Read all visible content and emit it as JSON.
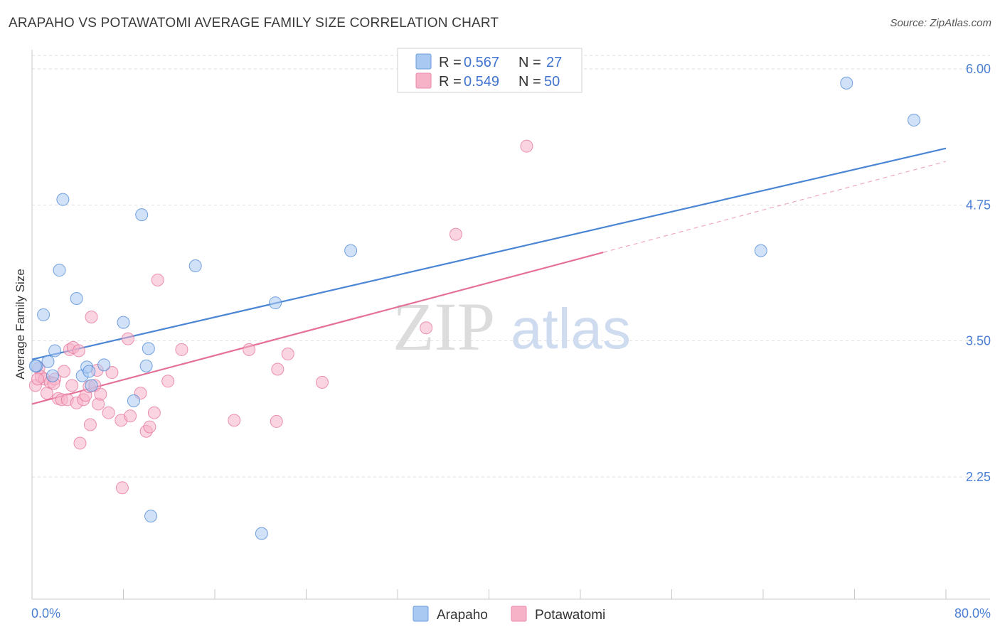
{
  "title": "ARAPAHO VS POTAWATOMI AVERAGE FAMILY SIZE CORRELATION CHART",
  "source": "Source: ZipAtlas.com",
  "watermark": {
    "zip": "ZIP",
    "atlas": "atlas"
  },
  "legend_top": {
    "rows": [
      {
        "r_label": "R =",
        "r_value": "0.567",
        "n_label": "N =",
        "n_value": "27",
        "color": "#a9c8f2"
      },
      {
        "r_label": "R =",
        "r_value": "0.549",
        "n_label": "N =",
        "n_value": "50",
        "color": "#f6b3c8"
      }
    ]
  },
  "legend_bottom": [
    {
      "name": "Arapaho",
      "color": "#a9c8f2"
    },
    {
      "name": "Potawatomi",
      "color": "#f6b3c8"
    }
  ],
  "chart_data": {
    "type": "scatter",
    "title": "ARAPAHO VS POTAWATOMI AVERAGE FAMILY SIZE CORRELATION CHART",
    "xlabel": "",
    "ylabel": "Average Family Size",
    "xlim": [
      0,
      80
    ],
    "ylim": [
      1.25,
      6.35
    ],
    "x_tick_labels": [
      "0.0%",
      "80.0%"
    ],
    "y_ticks": [
      2.25,
      3.5,
      4.75,
      6.0
    ],
    "y_tick_labels": [
      "2.25",
      "3.50",
      "4.75",
      "6.00"
    ],
    "grid": "horizontal dashed",
    "series": [
      {
        "name": "Arapaho",
        "color": "#4a86d4",
        "fill": "#a9c8f2",
        "r": 0.567,
        "n": 27,
        "trend": {
          "x0": 0,
          "y0": 3.33,
          "x1": 80,
          "y1": 5.27,
          "dashed_from": null
        },
        "points": [
          [
            0.4,
            3.27
          ],
          [
            1.0,
            3.74
          ],
          [
            1.4,
            3.31
          ],
          [
            1.8,
            3.18
          ],
          [
            2.0,
            3.41
          ],
          [
            2.4,
            4.15
          ],
          [
            2.7,
            4.8
          ],
          [
            3.9,
            3.89
          ],
          [
            4.4,
            3.18
          ],
          [
            4.8,
            3.26
          ],
          [
            5.0,
            3.22
          ],
          [
            5.2,
            3.09
          ],
          [
            6.3,
            3.28
          ],
          [
            8.0,
            3.67
          ],
          [
            8.9,
            2.95
          ],
          [
            9.6,
            4.66
          ],
          [
            10.0,
            3.27
          ],
          [
            10.2,
            3.43
          ],
          [
            10.4,
            1.89
          ],
          [
            14.3,
            4.19
          ],
          [
            20.1,
            1.73
          ],
          [
            21.3,
            3.85
          ],
          [
            27.9,
            4.33
          ],
          [
            63.8,
            4.33
          ],
          [
            71.3,
            5.87
          ],
          [
            77.2,
            5.53
          ],
          [
            0.3,
            3.27
          ]
        ]
      },
      {
        "name": "Potawatomi",
        "color": "#e5709a",
        "fill": "#f6b3c8",
        "r": 0.549,
        "n": 50,
        "trend": {
          "x0": 0,
          "y0": 2.92,
          "x1": 80,
          "y1": 5.15,
          "solid_until": 50
        },
        "points": [
          [
            0.3,
            3.09
          ],
          [
            0.6,
            3.25
          ],
          [
            0.8,
            3.17
          ],
          [
            1.1,
            3.15
          ],
          [
            1.3,
            3.02
          ],
          [
            1.6,
            3.12
          ],
          [
            2.0,
            3.15
          ],
          [
            2.3,
            2.97
          ],
          [
            2.6,
            2.96
          ],
          [
            2.8,
            3.22
          ],
          [
            3.1,
            2.96
          ],
          [
            3.3,
            3.42
          ],
          [
            3.5,
            3.09
          ],
          [
            3.6,
            3.44
          ],
          [
            3.9,
            2.93
          ],
          [
            4.1,
            3.41
          ],
          [
            4.2,
            2.56
          ],
          [
            4.5,
            2.96
          ],
          [
            4.7,
            3.0
          ],
          [
            5.0,
            3.08
          ],
          [
            5.1,
            2.73
          ],
          [
            5.2,
            3.72
          ],
          [
            5.5,
            3.09
          ],
          [
            5.7,
            3.23
          ],
          [
            5.8,
            2.92
          ],
          [
            6.0,
            3.01
          ],
          [
            6.7,
            2.84
          ],
          [
            7.0,
            3.21
          ],
          [
            7.8,
            2.77
          ],
          [
            7.9,
            2.15
          ],
          [
            8.4,
            3.52
          ],
          [
            8.6,
            2.81
          ],
          [
            9.5,
            3.02
          ],
          [
            10.0,
            2.67
          ],
          [
            10.3,
            2.71
          ],
          [
            10.7,
            2.84
          ],
          [
            11.0,
            4.06
          ],
          [
            11.9,
            3.13
          ],
          [
            13.1,
            3.42
          ],
          [
            17.7,
            2.77
          ],
          [
            19.0,
            3.42
          ],
          [
            21.4,
            2.76
          ],
          [
            21.5,
            3.24
          ],
          [
            22.4,
            3.38
          ],
          [
            25.4,
            3.12
          ],
          [
            34.5,
            3.62
          ],
          [
            37.1,
            4.48
          ],
          [
            43.3,
            5.29
          ],
          [
            0.5,
            3.15
          ],
          [
            1.9,
            3.11
          ]
        ]
      }
    ]
  }
}
